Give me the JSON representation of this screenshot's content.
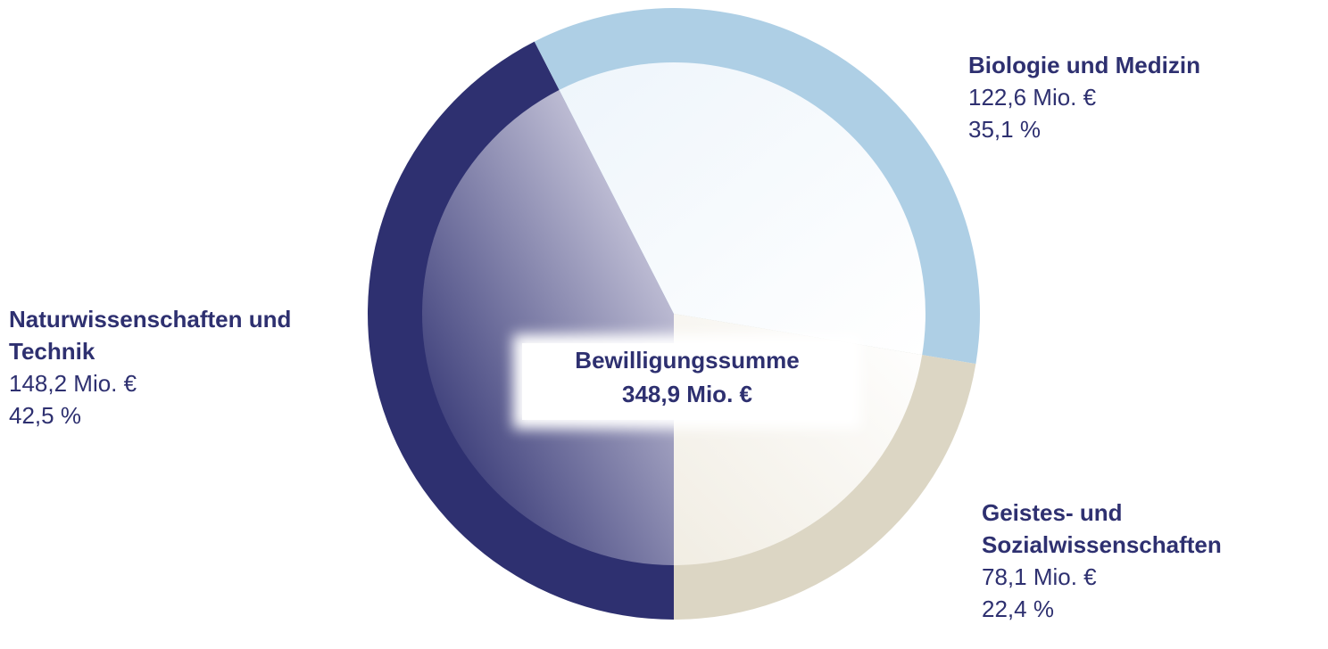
{
  "chart_data": {
    "type": "pie",
    "categories": [
      "Naturwissenschaften und Technik",
      "Biologie und Medizin",
      "Geistes- und Sozialwissenschaften"
    ],
    "values": [
      148.2,
      122.6,
      78.1
    ],
    "value_labels": [
      "148,2 Mio. €",
      "122,6 Mio. €",
      "78,1 Mio. €"
    ],
    "percentages": [
      42.5,
      35.1,
      22.4
    ],
    "percentage_labels": [
      "42,5 %",
      "35,1 %",
      "22,4 %"
    ],
    "colors": [
      "#2e3070",
      "#aecfe5",
      "#dcd6c4"
    ],
    "center_title": "Bewilligungssumme",
    "center_value": "348,9 Mio. €"
  }
}
